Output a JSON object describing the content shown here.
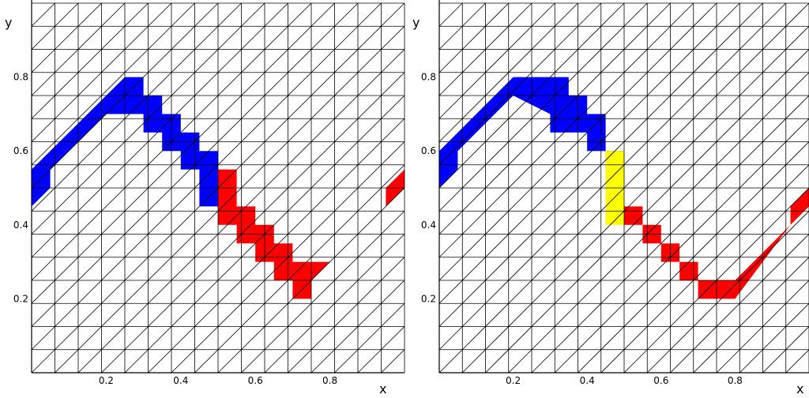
{
  "colors": {
    "grid": "#000000",
    "background": "#ffffff",
    "region_a": "#0000ff",
    "region_b": "#ff0000",
    "interface": "#ffff00"
  },
  "panels": [
    {
      "id": "left",
      "x_label": "x",
      "y_label": "y",
      "x_ticks": [
        "0.2",
        "0.4",
        "0.6",
        "0.8"
      ],
      "y_ticks": [
        "0.2",
        "0.4",
        "0.6",
        "0.8"
      ],
      "x_tick_values": [
        0.2,
        0.4,
        0.6,
        0.8
      ],
      "y_tick_values": [
        0.2,
        0.4,
        0.6,
        0.8
      ],
      "regions": [
        {
          "name": "blue",
          "color": "#0000ff",
          "polygon": [
            [
              0.0,
              0.55
            ],
            [
              0.2,
              0.75
            ],
            [
              0.25,
              0.8
            ],
            [
              0.3,
              0.8
            ],
            [
              0.3,
              0.75
            ],
            [
              0.35,
              0.75
            ],
            [
              0.35,
              0.7
            ],
            [
              0.4,
              0.7
            ],
            [
              0.4,
              0.65
            ],
            [
              0.45,
              0.65
            ],
            [
              0.45,
              0.6
            ],
            [
              0.5,
              0.6
            ],
            [
              0.5,
              0.45
            ],
            [
              0.45,
              0.45
            ],
            [
              0.45,
              0.55
            ],
            [
              0.4,
              0.55
            ],
            [
              0.4,
              0.6
            ],
            [
              0.35,
              0.6
            ],
            [
              0.35,
              0.65
            ],
            [
              0.3,
              0.65
            ],
            [
              0.3,
              0.7
            ],
            [
              0.2,
              0.7
            ],
            [
              0.05,
              0.55
            ],
            [
              0.05,
              0.5
            ],
            [
              0.0,
              0.45
            ]
          ]
        },
        {
          "name": "red",
          "color": "#ff0000",
          "polygon": [
            [
              0.5,
              0.55
            ],
            [
              0.55,
              0.55
            ],
            [
              0.55,
              0.45
            ],
            [
              0.6,
              0.45
            ],
            [
              0.6,
              0.4
            ],
            [
              0.65,
              0.4
            ],
            [
              0.65,
              0.35
            ],
            [
              0.7,
              0.35
            ],
            [
              0.7,
              0.3
            ],
            [
              0.8,
              0.3
            ],
            [
              0.95,
              0.45
            ],
            [
              1.0,
              0.5
            ],
            [
              1.0,
              0.55
            ],
            [
              0.95,
              0.5
            ],
            [
              0.95,
              0.45
            ],
            [
              0.8,
              0.3
            ],
            [
              0.75,
              0.25
            ],
            [
              0.75,
              0.2
            ],
            [
              0.7,
              0.2
            ],
            [
              0.7,
              0.25
            ],
            [
              0.65,
              0.25
            ],
            [
              0.65,
              0.3
            ],
            [
              0.6,
              0.3
            ],
            [
              0.6,
              0.35
            ],
            [
              0.55,
              0.35
            ],
            [
              0.55,
              0.4
            ],
            [
              0.5,
              0.4
            ]
          ]
        }
      ]
    },
    {
      "id": "right",
      "x_label": "x",
      "y_label": "y",
      "x_ticks": [
        "0.2",
        "0.4",
        "0.6",
        "0.8"
      ],
      "y_ticks": [
        "0.2",
        "0.4",
        "0.6",
        "0.8"
      ],
      "x_tick_values": [
        0.2,
        0.4,
        0.6,
        0.8
      ],
      "y_tick_values": [
        0.2,
        0.4,
        0.6,
        0.8
      ],
      "regions": [
        {
          "name": "blue",
          "color": "#0000ff",
          "polygon": [
            [
              0.0,
              0.6
            ],
            [
              0.2,
              0.8
            ],
            [
              0.35,
              0.8
            ],
            [
              0.35,
              0.75
            ],
            [
              0.4,
              0.75
            ],
            [
              0.4,
              0.7
            ],
            [
              0.45,
              0.7
            ],
            [
              0.45,
              0.6
            ],
            [
              0.5,
              0.6
            ],
            [
              0.5,
              0.55
            ],
            [
              0.45,
              0.55
            ],
            [
              0.45,
              0.6
            ],
            [
              0.4,
              0.6
            ],
            [
              0.4,
              0.65
            ],
            [
              0.3,
              0.65
            ],
            [
              0.3,
              0.7
            ],
            [
              0.2,
              0.75
            ],
            [
              0.05,
              0.6
            ],
            [
              0.05,
              0.55
            ],
            [
              0.0,
              0.5
            ]
          ]
        },
        {
          "name": "yellow",
          "color": "#ffff00",
          "polygon": [
            [
              0.45,
              0.6
            ],
            [
              0.5,
              0.6
            ],
            [
              0.5,
              0.4
            ],
            [
              0.45,
              0.4
            ]
          ]
        },
        {
          "name": "red",
          "color": "#ff0000",
          "polygon": [
            [
              0.5,
              0.45
            ],
            [
              0.55,
              0.45
            ],
            [
              0.55,
              0.4
            ],
            [
              0.6,
              0.4
            ],
            [
              0.6,
              0.35
            ],
            [
              0.65,
              0.35
            ],
            [
              0.65,
              0.3
            ],
            [
              0.7,
              0.3
            ],
            [
              0.7,
              0.25
            ],
            [
              0.8,
              0.25
            ],
            [
              0.95,
              0.4
            ],
            [
              1.0,
              0.45
            ],
            [
              1.0,
              0.5
            ],
            [
              0.95,
              0.45
            ],
            [
              0.95,
              0.4
            ],
            [
              0.8,
              0.2
            ],
            [
              0.7,
              0.2
            ],
            [
              0.7,
              0.25
            ],
            [
              0.65,
              0.25
            ],
            [
              0.65,
              0.3
            ],
            [
              0.6,
              0.3
            ],
            [
              0.6,
              0.35
            ],
            [
              0.55,
              0.35
            ],
            [
              0.55,
              0.4
            ],
            [
              0.5,
              0.4
            ]
          ]
        }
      ]
    }
  ]
}
